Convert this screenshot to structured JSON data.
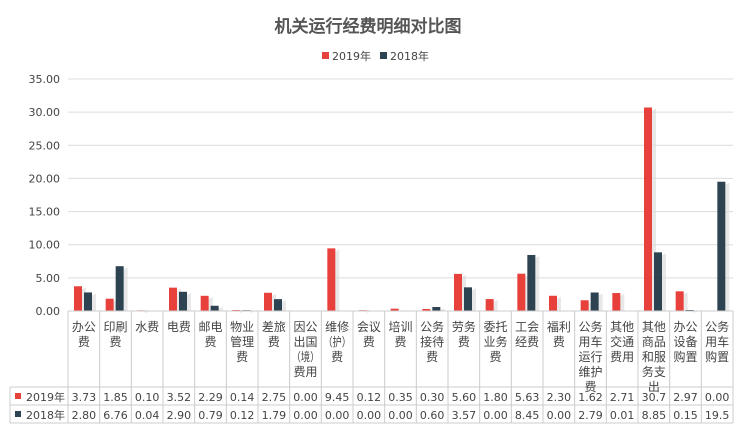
{
  "chart_data": {
    "type": "bar",
    "title": "机关运行经费明细对比图",
    "categories": [
      "办公费",
      "印刷费",
      "水费",
      "电费",
      "邮电费",
      "物业管理费",
      "差旅费",
      "因公出国（境）费用",
      "维修（护）费",
      "会议费",
      "培训费",
      "公务接待费",
      "劳务费",
      "委托业务费",
      "工会经费",
      "福利费",
      "公务用车运行维护费",
      "其他交通费用",
      "其他商品和服务支出",
      "办公设备购置",
      "公务用车购置"
    ],
    "series": [
      {
        "name": "2019年",
        "color": "#e8413b",
        "values": [
          3.73,
          1.85,
          0.1,
          3.52,
          2.29,
          0.14,
          2.75,
          0.0,
          9.45,
          0.12,
          0.35,
          0.3,
          5.6,
          1.8,
          5.63,
          2.3,
          1.62,
          2.71,
          30.7,
          2.97,
          0.0
        ],
        "labels": [
          "3.73",
          "1.85",
          "0.10",
          "3.52",
          "2.29",
          "0.14",
          "2.75",
          "0.00",
          "9.45",
          "0.12",
          "0.35",
          "0.30",
          "5.60",
          "1.80",
          "5.63",
          "2.30",
          "1.62",
          "2.71",
          "30.7",
          "2.97",
          "0.00"
        ]
      },
      {
        "name": "2018年",
        "color": "#2e4352",
        "values": [
          2.8,
          6.76,
          0.04,
          2.9,
          0.79,
          0.12,
          1.79,
          0.0,
          0.0,
          0.0,
          0.0,
          0.6,
          3.57,
          0.0,
          8.45,
          0.0,
          2.79,
          0.01,
          8.85,
          0.15,
          19.5
        ],
        "labels": [
          "2.80",
          "6.76",
          "0.04",
          "2.90",
          "0.79",
          "0.12",
          "1.79",
          "0.00",
          "0.00",
          "0.00",
          "0.00",
          "0.60",
          "3.57",
          "0.00",
          "8.45",
          "0.00",
          "2.79",
          "0.01",
          "8.85",
          "0.15",
          "19.5"
        ]
      }
    ],
    "yticks": [
      "0.00",
      "5.00",
      "10.00",
      "15.00",
      "20.00",
      "25.00",
      "30.00",
      "35.00"
    ],
    "ylim": [
      0,
      35
    ],
    "grid": true,
    "legend": "top",
    "data_table": true
  }
}
